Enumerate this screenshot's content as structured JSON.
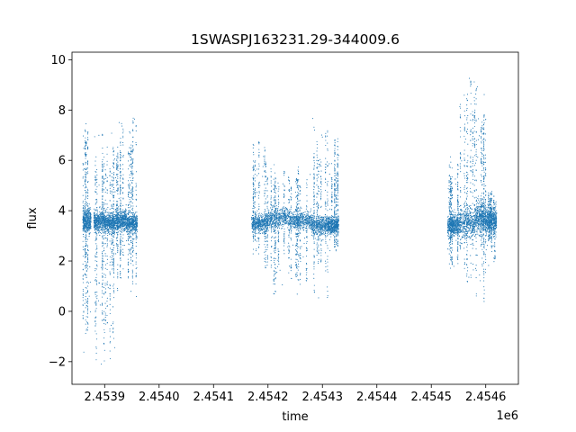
{
  "chart_data": {
    "type": "scatter",
    "title": "1SWASPJ163231.29-344009.6",
    "xlabel": "time",
    "ylabel": "flux",
    "x_offset_label": "1e6",
    "xlim": [
      2.45384,
      2.45466
    ],
    "ylim": [
      -2.9,
      10.3
    ],
    "x_ticks": [
      2.4539,
      2.454,
      2.4541,
      2.4542,
      2.4543,
      2.4544,
      2.4545,
      2.4546
    ],
    "x_tick_labels": [
      "2.4539",
      "2.4540",
      "2.4541",
      "2.4542",
      "2.4543",
      "2.4544",
      "2.4545",
      "2.4546"
    ],
    "y_ticks": [
      -2,
      0,
      2,
      4,
      6,
      8,
      10
    ],
    "y_tick_labels": [
      "−2",
      "0",
      "2",
      "4",
      "6",
      "8",
      "10"
    ],
    "grid": false,
    "marker_color": "#1f77b4",
    "series": [
      {
        "observing_seasons": [
          {
            "x_range": [
              2.45386,
              2.45396
            ],
            "clusters": [
              {
                "x": [
                  2.45386,
                  2.453875
                ],
                "y_center": 3.6,
                "y_spread": 0.5,
                "y_max": 7.6,
                "y_min": -2.0
              },
              {
                "x": [
                  2.45388,
                  2.4539
                ],
                "y_center": 3.6,
                "y_spread": 0.4,
                "y_max": 7.5,
                "y_min": -2.2
              },
              {
                "x": [
                  2.4539,
                  2.45392
                ],
                "y_center": 3.5,
                "y_spread": 0.4,
                "y_max": 7.2,
                "y_min": -2.2
              },
              {
                "x": [
                  2.45392,
                  2.45394
                ],
                "y_center": 3.6,
                "y_spread": 0.4,
                "y_max": 7.6,
                "y_min": 0.2
              },
              {
                "x": [
                  2.45394,
                  2.45396
                ],
                "y_center": 3.5,
                "y_spread": 0.4,
                "y_max": 7.8,
                "y_min": 0.2
              }
            ]
          },
          {
            "x_range": [
              2.45417,
              2.45433
            ],
            "clusters": [
              {
                "x": [
                  2.45417,
                  2.4542
                ],
                "y_center": 3.5,
                "y_spread": 0.35,
                "y_max": 6.9,
                "y_min": 1.4
              },
              {
                "x": [
                  2.4542,
                  2.45424
                ],
                "y_center": 3.7,
                "y_spread": 0.4,
                "y_max": 6.0,
                "y_min": 0.6
              },
              {
                "x": [
                  2.45424,
                  2.45428
                ],
                "y_center": 3.6,
                "y_spread": 0.35,
                "y_max": 6.0,
                "y_min": 0.5
              },
              {
                "x": [
                  2.45428,
                  2.45431
                ],
                "y_center": 3.4,
                "y_spread": 0.4,
                "y_max": 7.9,
                "y_min": 0.5
              },
              {
                "x": [
                  2.45431,
                  2.45433
                ],
                "y_center": 3.4,
                "y_spread": 0.35,
                "y_max": 6.9,
                "y_min": 2.3
              }
            ]
          },
          {
            "x_range": [
              2.45453,
              2.45462
            ],
            "clusters": [
              {
                "x": [
                  2.45453,
                  2.45455
                ],
                "y_center": 3.4,
                "y_spread": 0.45,
                "y_max": 6.2,
                "y_min": 1.3
              },
              {
                "x": [
                  2.45455,
                  2.45458
                ],
                "y_center": 3.5,
                "y_spread": 0.6,
                "y_max": 9.7,
                "y_min": 0.9
              },
              {
                "x": [
                  2.45458,
                  2.4546
                ],
                "y_center": 3.7,
                "y_spread": 0.6,
                "y_max": 9.3,
                "y_min": 0.2
              },
              {
                "x": [
                  2.4546,
                  2.45462
                ],
                "y_center": 3.6,
                "y_spread": 0.5,
                "y_max": 5.0,
                "y_min": 1.7
              }
            ]
          }
        ]
      }
    ]
  }
}
